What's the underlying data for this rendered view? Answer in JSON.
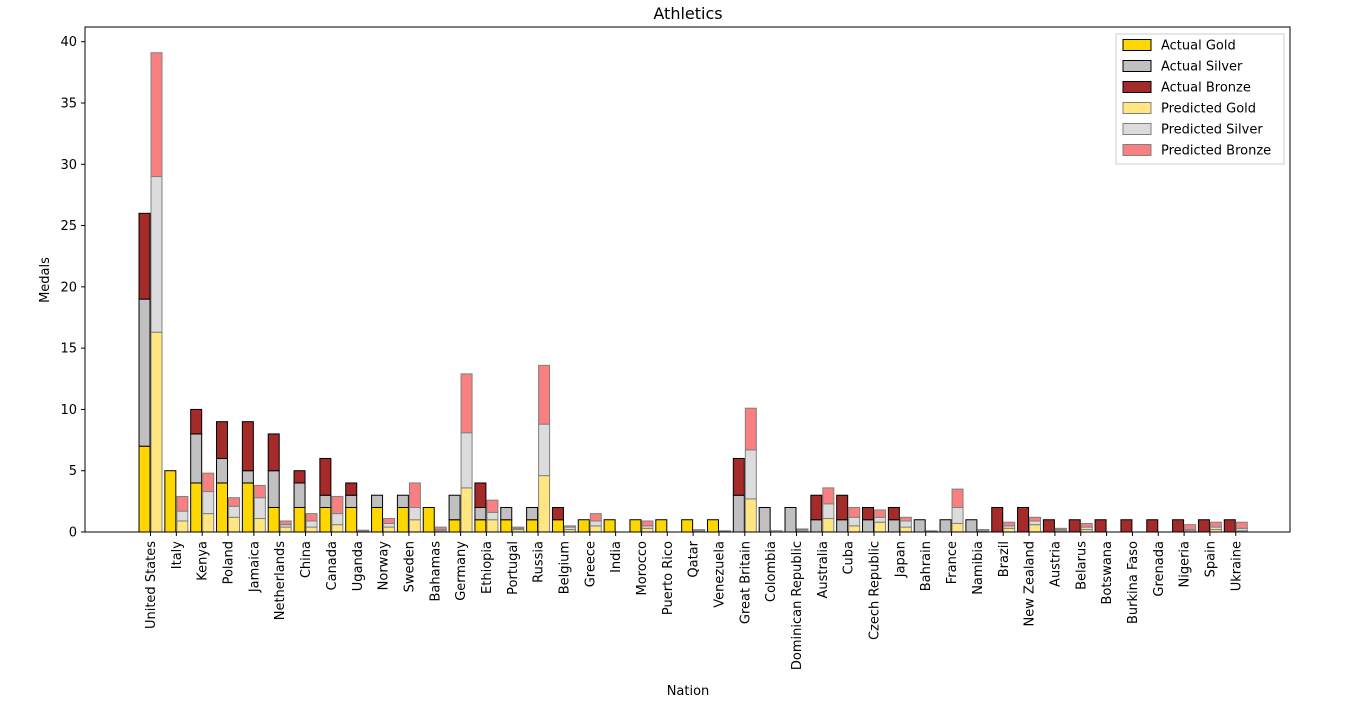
{
  "chart_data": {
    "type": "bar",
    "title": "Athletics",
    "xlabel": "Nation",
    "ylabel": "Medals",
    "ylim": [
      0,
      41.2
    ],
    "yticks": [
      0,
      5,
      10,
      15,
      20,
      25,
      30,
      35,
      40
    ],
    "grid": false,
    "legend_position": "top-right",
    "categories": [
      "United States",
      "Italy",
      "Kenya",
      "Poland",
      "Jamaica",
      "Netherlands",
      "China",
      "Canada",
      "Uganda",
      "Norway",
      "Sweden",
      "Bahamas",
      "Germany",
      "Ethiopia",
      "Portugal",
      "Russia",
      "Belgium",
      "Greece",
      "India",
      "Morocco",
      "Puerto Rico",
      "Qatar",
      "Venezuela",
      "Great Britain",
      "Colombia",
      "Dominican Republic",
      "Australia",
      "Cuba",
      "Czech Republic",
      "Japan",
      "Bahrain",
      "France",
      "Namibia",
      "Brazil",
      "New Zealand",
      "Austria",
      "Belarus",
      "Botswana",
      "Burkina Faso",
      "Grenada",
      "Nigeria",
      "Spain",
      "Ukraine"
    ],
    "series": [
      {
        "name": "Actual Gold",
        "group": "actual",
        "color": "#ffd700",
        "edge": "#000000",
        "values": [
          7,
          5,
          4,
          4,
          4,
          2,
          2,
          2,
          2,
          2,
          2,
          2,
          1,
          1,
          1,
          1,
          1,
          1,
          1,
          1,
          1,
          1,
          1,
          0,
          0,
          0,
          0,
          0,
          0,
          0,
          0,
          0,
          0,
          0,
          0,
          0,
          0,
          0,
          0,
          0,
          0,
          0,
          0
        ]
      },
      {
        "name": "Actual Silver",
        "group": "actual",
        "color": "#c0c0c0",
        "edge": "#000000",
        "values": [
          12,
          0,
          4,
          2,
          1,
          3,
          2,
          1,
          1,
          1,
          1,
          0,
          2,
          1,
          1,
          1,
          0,
          0,
          0,
          0,
          0,
          0,
          0,
          3,
          2,
          2,
          1,
          1,
          1,
          1,
          1,
          1,
          1,
          0,
          0,
          0,
          0,
          0,
          0,
          0,
          0,
          0,
          0
        ]
      },
      {
        "name": "Actual Bronze",
        "group": "actual",
        "color": "#a52a2a",
        "edge": "#000000",
        "values": [
          7,
          0,
          2,
          3,
          4,
          3,
          1,
          3,
          1,
          0,
          0,
          0,
          0,
          2,
          0,
          0,
          1,
          0,
          0,
          0,
          0,
          0,
          0,
          3,
          0,
          0,
          2,
          2,
          1,
          1,
          0,
          0,
          0,
          2,
          2,
          1,
          1,
          1,
          1,
          1,
          1,
          1,
          1
        ]
      },
      {
        "name": "Predicted Gold",
        "group": "predicted",
        "color": "#ffe680",
        "edge": "#808080",
        "values": [
          16.3,
          0.9,
          1.5,
          1.2,
          1.1,
          0.4,
          0.4,
          0.6,
          0.05,
          0.4,
          1.0,
          0.1,
          3.6,
          1.0,
          0.2,
          4.6,
          0.2,
          0.5,
          0.0,
          0.3,
          0.0,
          0.0,
          0.0,
          2.7,
          0.1,
          0.1,
          1.1,
          0.5,
          0.8,
          0.4,
          0.05,
          0.7,
          0.05,
          0.3,
          0.6,
          0.1,
          0.2,
          0.0,
          0.0,
          0.0,
          0.1,
          0.2,
          0.1
        ]
      },
      {
        "name": "Predicted Silver",
        "group": "predicted",
        "color": "#dcdcdc",
        "edge": "#808080",
        "values": [
          12.7,
          0.8,
          1.8,
          0.9,
          1.7,
          0.2,
          0.5,
          0.9,
          0.05,
          0.3,
          1.0,
          0.1,
          4.5,
          0.6,
          0.1,
          4.2,
          0.2,
          0.4,
          0.0,
          0.2,
          0.0,
          0.1,
          0.05,
          4.0,
          0.0,
          0.1,
          1.2,
          0.7,
          0.4,
          0.5,
          0.05,
          1.3,
          0.1,
          0.2,
          0.3,
          0.1,
          0.2,
          0.0,
          0.0,
          0.0,
          0.1,
          0.2,
          0.2
        ]
      },
      {
        "name": "Predicted Bronze",
        "group": "predicted",
        "color": "#f88080",
        "edge": "#808080",
        "values": [
          10.1,
          1.2,
          1.5,
          0.7,
          1.0,
          0.3,
          0.6,
          1.4,
          0.05,
          0.4,
          2.0,
          0.2,
          4.8,
          1.0,
          0.1,
          4.8,
          0.1,
          0.6,
          0.0,
          0.4,
          0.0,
          0.1,
          0.05,
          3.4,
          0.0,
          0.05,
          1.3,
          0.8,
          0.6,
          0.3,
          0.0,
          1.5,
          0.05,
          0.3,
          0.3,
          0.1,
          0.3,
          0.0,
          0.0,
          0.0,
          0.4,
          0.4,
          0.5
        ]
      }
    ]
  }
}
